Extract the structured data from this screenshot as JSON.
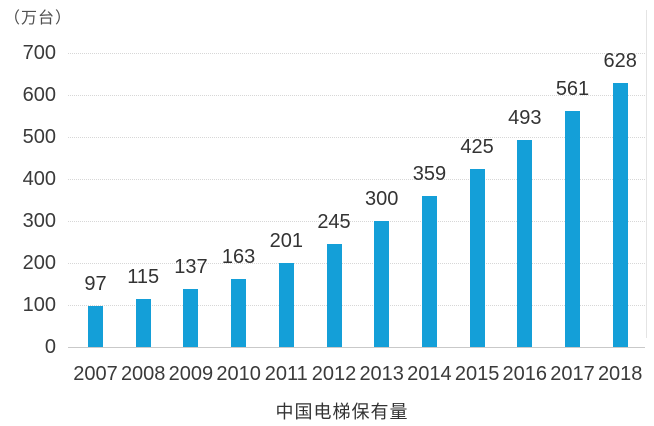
{
  "chart_data": {
    "type": "bar",
    "title": "中国电梯保有量",
    "unit": "（万台）",
    "ylabel": "万台",
    "categories": [
      "2007",
      "2008",
      "2009",
      "2010",
      "2011",
      "2012",
      "2013",
      "2014",
      "2015",
      "2016",
      "2017",
      "2018"
    ],
    "values": [
      97,
      115,
      137,
      163,
      201,
      245,
      300,
      359,
      425,
      493,
      561,
      628
    ],
    "ylim": [
      0,
      700
    ],
    "yticks": [
      0,
      100,
      200,
      300,
      400,
      500,
      600,
      700
    ],
    "grid": true,
    "grid_style": "dotted",
    "legend": "none",
    "data_labels": true,
    "bar_color": "#149fd8"
  },
  "colors": {
    "bar": "#149fd8",
    "text": "#3a3a3a",
    "gridline": "#d7d7d7",
    "baseline": "#c9c9c9",
    "background": "#ffffff"
  }
}
